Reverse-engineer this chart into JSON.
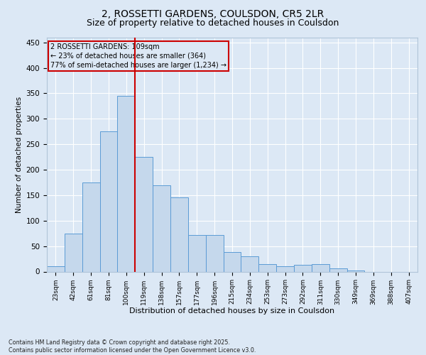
{
  "title": "2, ROSSETTI GARDENS, COULSDON, CR5 2LR",
  "subtitle": "Size of property relative to detached houses in Coulsdon",
  "xlabel": "Distribution of detached houses by size in Coulsdon",
  "ylabel": "Number of detached properties",
  "categories": [
    "23sqm",
    "42sqm",
    "61sqm",
    "81sqm",
    "100sqm",
    "119sqm",
    "138sqm",
    "157sqm",
    "177sqm",
    "196sqm",
    "215sqm",
    "234sqm",
    "253sqm",
    "273sqm",
    "292sqm",
    "311sqm",
    "330sqm",
    "349sqm",
    "369sqm",
    "388sqm",
    "407sqm"
  ],
  "values": [
    10,
    75,
    175,
    275,
    345,
    225,
    170,
    145,
    72,
    72,
    38,
    30,
    15,
    10,
    13,
    15,
    6,
    2,
    0,
    0,
    0
  ],
  "bar_color": "#c5d8ec",
  "bar_edge_color": "#5b9bd5",
  "bg_color": "#dce8f5",
  "grid_color": "#ffffff",
  "vline_color": "#cc0000",
  "annotation_text": "2 ROSSETTI GARDENS: 109sqm\n← 23% of detached houses are smaller (364)\n77% of semi-detached houses are larger (1,234) →",
  "annotation_box_edge": "#cc0000",
  "ylim": [
    0,
    460
  ],
  "yticks": [
    0,
    50,
    100,
    150,
    200,
    250,
    300,
    350,
    400,
    450
  ],
  "footer": "Contains HM Land Registry data © Crown copyright and database right 2025.\nContains public sector information licensed under the Open Government Licence v3.0.",
  "title_fontsize": 10,
  "subtitle_fontsize": 9
}
